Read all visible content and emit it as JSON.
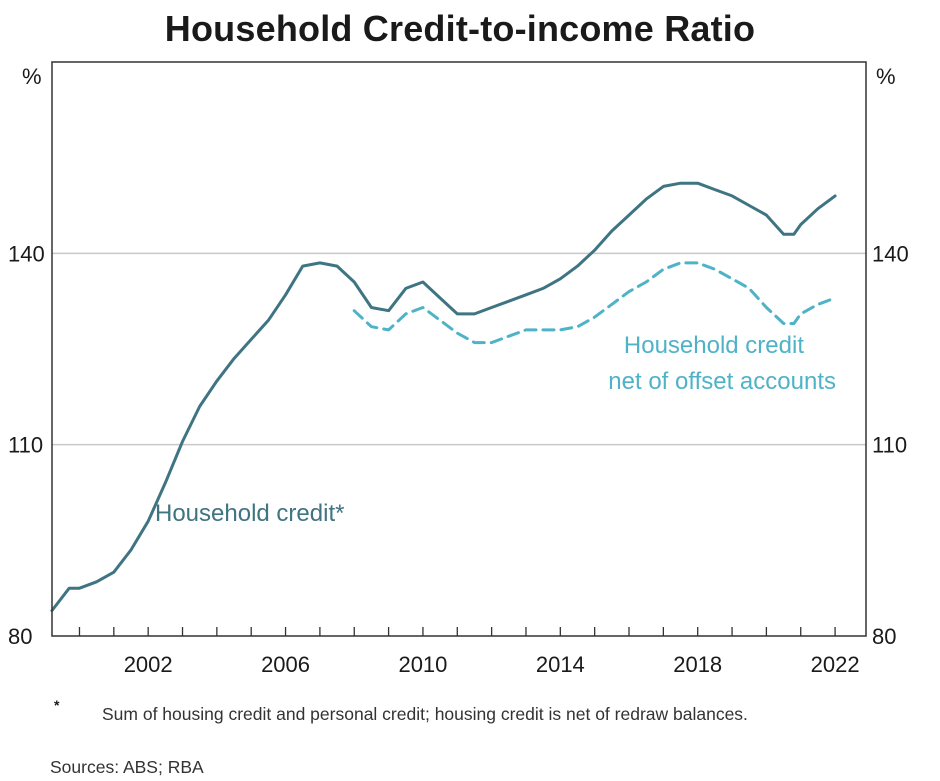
{
  "title": "Household Credit-to-income Ratio",
  "footnote_marker": "*",
  "footnote": "Sum of housing credit and personal credit; housing credit is net of redraw balances.",
  "sources": "Sources: ABS; RBA",
  "colors": {
    "household_credit": "#3f7482",
    "net_of_offset": "#4fb3c8",
    "grid": "#c8c8c8",
    "axis": "#333333"
  },
  "chart_data": {
    "type": "line",
    "title": "Household Credit-to-income Ratio",
    "y_unit_left": "%",
    "y_unit_right": "%",
    "xlim": [
      1999.2,
      2022.9
    ],
    "ylim": [
      80,
      170
    ],
    "x_ticks": [
      2002,
      2006,
      2010,
      2014,
      2018,
      2022
    ],
    "x_tick_labels": [
      "2002",
      "2006",
      "2010",
      "2014",
      "2018",
      "2022"
    ],
    "y_ticks": [
      80,
      110,
      140
    ],
    "y_tick_labels": [
      "80",
      "110",
      "140"
    ],
    "grid": "horizontal",
    "legend": "inline labels",
    "series": [
      {
        "name": "Household credit*",
        "label_lines": [
          "Household credit*"
        ],
        "style": "solid",
        "color": "#3f7482",
        "x": [
          1999.2,
          1999.7,
          2000.0,
          2000.5,
          2001.0,
          2001.5,
          2002.0,
          2002.5,
          2003.0,
          2003.5,
          2004.0,
          2004.5,
          2005.0,
          2005.5,
          2006.0,
          2006.5,
          2007.0,
          2007.5,
          2008.0,
          2008.5,
          2009.0,
          2009.5,
          2010.0,
          2010.5,
          2011.0,
          2011.5,
          2012.0,
          2012.5,
          2013.0,
          2013.5,
          2014.0,
          2014.5,
          2015.0,
          2015.5,
          2016.0,
          2016.5,
          2017.0,
          2017.5,
          2018.0,
          2018.5,
          2019.0,
          2019.5,
          2020.0,
          2020.5,
          2020.8,
          2021.0,
          2021.5,
          2022.0
        ],
        "values": [
          84.0,
          87.5,
          87.5,
          88.5,
          90.0,
          93.5,
          98.0,
          104.0,
          110.5,
          116.0,
          120.0,
          123.5,
          126.5,
          129.5,
          133.5,
          138.0,
          138.5,
          138.0,
          135.5,
          131.5,
          131.0,
          134.5,
          135.5,
          133.0,
          130.5,
          130.5,
          131.5,
          132.5,
          133.5,
          134.5,
          136.0,
          138.0,
          140.5,
          143.5,
          146.0,
          148.5,
          150.5,
          151.0,
          151.0,
          150.0,
          149.0,
          147.5,
          146.0,
          143.0,
          143.0,
          144.5,
          147.0,
          149.0
        ]
      },
      {
        "name": "Household credit net of offset accounts",
        "label_lines": [
          "Household credit",
          "net of offset accounts"
        ],
        "style": "dashed",
        "color": "#4fb3c8",
        "x": [
          2008.0,
          2008.5,
          2009.0,
          2009.5,
          2010.0,
          2010.5,
          2011.0,
          2011.5,
          2012.0,
          2012.5,
          2013.0,
          2013.5,
          2014.0,
          2014.5,
          2015.0,
          2015.5,
          2016.0,
          2016.5,
          2017.0,
          2017.5,
          2018.0,
          2018.5,
          2019.0,
          2019.5,
          2020.0,
          2020.5,
          2020.8,
          2021.0,
          2021.5,
          2022.0
        ],
        "values": [
          131.0,
          128.5,
          128.0,
          130.5,
          131.5,
          129.5,
          127.5,
          126.0,
          126.0,
          127.0,
          128.0,
          128.0,
          128.0,
          128.5,
          130.0,
          132.0,
          134.0,
          135.5,
          137.5,
          138.5,
          138.5,
          137.5,
          136.0,
          134.5,
          131.5,
          129.0,
          129.0,
          130.5,
          132.0,
          133.0
        ]
      }
    ]
  }
}
